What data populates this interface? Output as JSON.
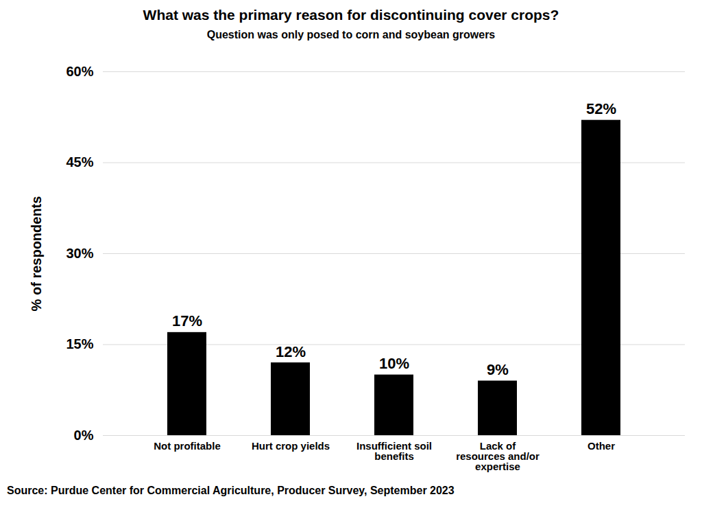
{
  "chart_data": {
    "type": "bar",
    "title": "What was the primary reason for discontinuing cover crops?",
    "subtitle": "Question was only posed to corn and soybean growers",
    "y_label": "% of respondents",
    "caption": "Source: Purdue Center for Commercial Agriculture, Producer Survey, September 2023",
    "categories": [
      "Not profitable",
      "Hurt crop yields",
      "Insufficient soil benefits",
      "Lack of resources and/or expertise",
      "Other"
    ],
    "values": [
      17,
      12,
      10,
      9,
      52
    ],
    "value_labels": [
      "17%",
      "12%",
      "10%",
      "9%",
      "52%"
    ],
    "data_labels": true,
    "color": "#000000",
    "ylim": [
      0,
      60
    ],
    "yticks": [
      {
        "value": 0,
        "label": "0%"
      },
      {
        "value": 15,
        "label": "15%"
      },
      {
        "value": 30,
        "label": "30%"
      },
      {
        "value": 45,
        "label": "45%"
      },
      {
        "value": 60,
        "label": "60%"
      }
    ],
    "grid": true
  }
}
